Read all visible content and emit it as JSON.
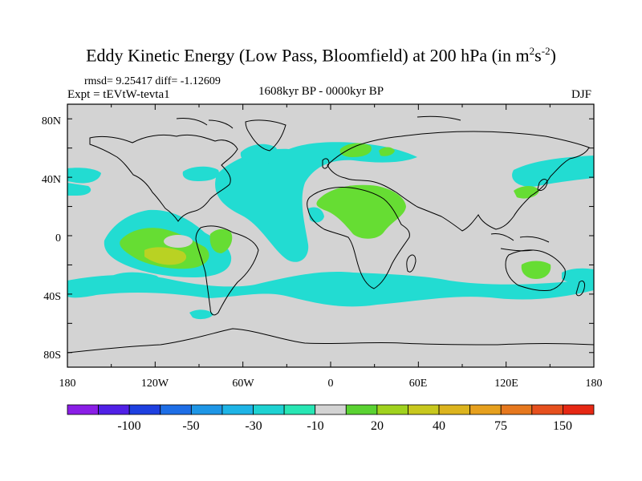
{
  "title": {
    "main": "Eddy Kinetic Energy (Low Pass, Bloomfield) at 200 hPa (in m",
    "exp1": "2",
    "mid": "s",
    "exp2": "-2",
    "close": ")"
  },
  "stats": "rmsd= 9.25417 diff= -1.12609",
  "experiment": "Expt = tEVtW-tevta1",
  "period": "1608kyr BP - 0000kyr BP",
  "season": "DJF",
  "axes": {
    "y_ticks": [
      "80N",
      "40N",
      "0",
      "40S",
      "80S"
    ],
    "x_ticks": [
      "180",
      "120W",
      "60W",
      "0",
      "60E",
      "120E",
      "180"
    ]
  },
  "colors": {
    "land_sea_neutral": "#d3d3d3",
    "cyan": "#22dcd2",
    "cyan_dark": "#1fc4d0",
    "green": "#66dd33",
    "yellow_green": "#b9d223",
    "yellow": "#d2c81e",
    "coastline": "#000000"
  },
  "colorbar": {
    "colors": [
      "#8a1ee6",
      "#5020e6",
      "#1e40e0",
      "#1e6ee6",
      "#1e96e6",
      "#1eb4e6",
      "#1ed2d2",
      "#28e6b4",
      "#d3d3d3",
      "#5ad232",
      "#a0d21e",
      "#c8c81e",
      "#dcb41e",
      "#e6a01e",
      "#e6781e",
      "#e6501e",
      "#e62814"
    ],
    "labels": [
      "-100",
      "-50",
      "-30",
      "-10",
      "20",
      "40",
      "75",
      "150"
    ]
  }
}
